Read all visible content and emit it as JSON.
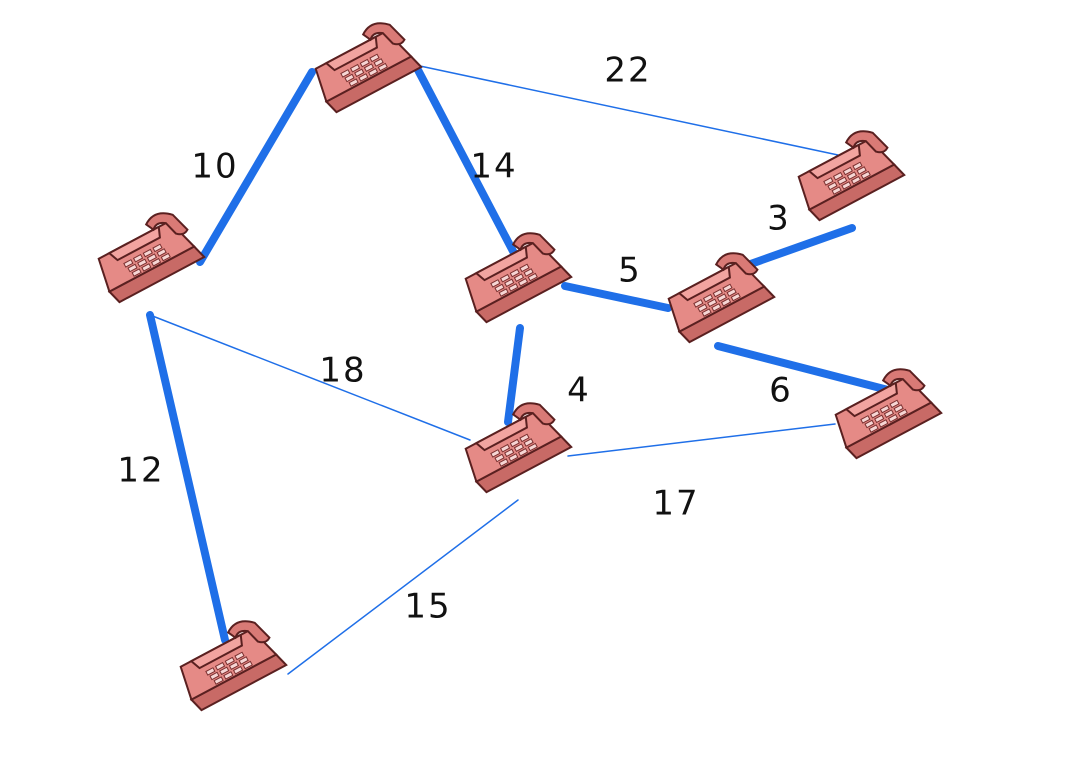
{
  "graph": {
    "node_icon": "telephone-icon",
    "colors": {
      "edge": "#1f6fe8",
      "phone": "#e58a86"
    },
    "nodes": [
      {
        "id": "n1",
        "label": ""
      },
      {
        "id": "n2",
        "label": ""
      },
      {
        "id": "n3",
        "label": ""
      },
      {
        "id": "n4",
        "label": ""
      },
      {
        "id": "n5",
        "label": ""
      },
      {
        "id": "n6",
        "label": ""
      },
      {
        "id": "n7",
        "label": ""
      },
      {
        "id": "n8",
        "label": ""
      },
      {
        "id": "n9",
        "label": ""
      }
    ],
    "edges": [
      {
        "from": "n1",
        "to": "n2",
        "weight": "10",
        "highlighted": true
      },
      {
        "from": "n1",
        "to": "n3",
        "weight": "22",
        "highlighted": false
      },
      {
        "from": "n1",
        "to": "n4",
        "weight": "14",
        "highlighted": true
      },
      {
        "from": "n2",
        "to": "n6",
        "weight": "18",
        "highlighted": false
      },
      {
        "from": "n2",
        "to": "n8",
        "weight": "12",
        "highlighted": true
      },
      {
        "from": "n3",
        "to": "n5",
        "weight": "3",
        "highlighted": true
      },
      {
        "from": "n4",
        "to": "n5",
        "weight": "5",
        "highlighted": true
      },
      {
        "from": "n4",
        "to": "n6",
        "weight": "4",
        "highlighted": true
      },
      {
        "from": "n5",
        "to": "n7",
        "weight": "6",
        "highlighted": true
      },
      {
        "from": "n6",
        "to": "n7",
        "weight": "17",
        "highlighted": false
      },
      {
        "from": "n6",
        "to": "n8",
        "weight": "15",
        "highlighted": false
      }
    ]
  }
}
